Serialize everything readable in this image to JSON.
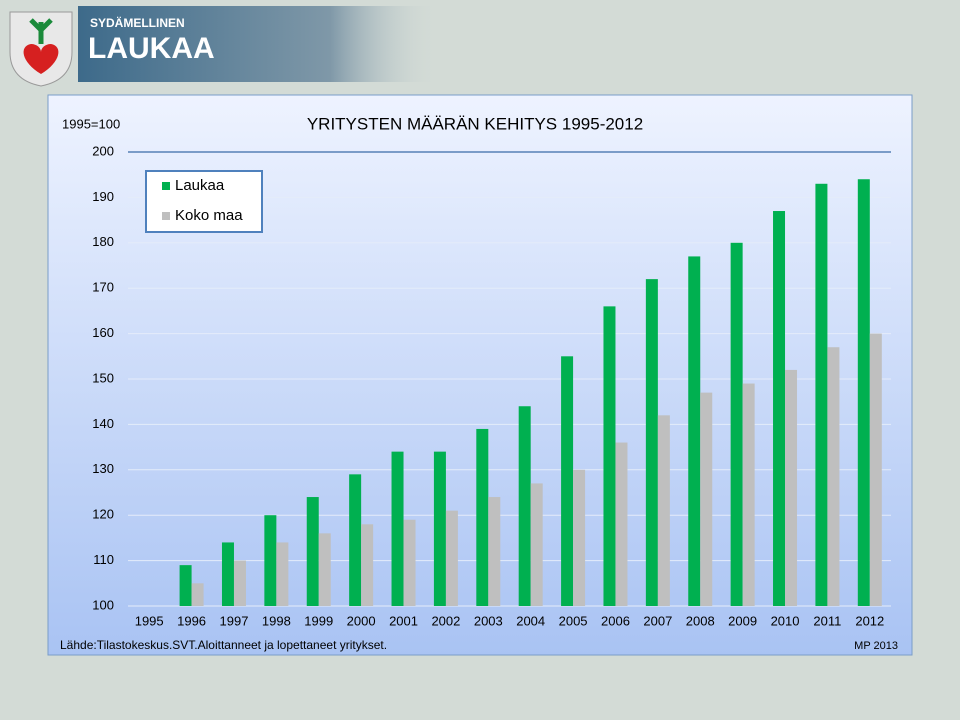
{
  "header": {
    "tagline": "SYDÄMELLINEN",
    "name": "LAUKAA"
  },
  "chart_data": {
    "type": "bar",
    "title": "YRITYSTEN MÄÄRÄN KEHITYS 1995-2012",
    "unit_label": "1995=100",
    "source": "Lähde:Tilastokeskus.SVT.Aloittanneet ja lopettaneet yritykset.",
    "credit": "MP 2013",
    "categories": [
      "1995",
      "1996",
      "1997",
      "1998",
      "1999",
      "2000",
      "2001",
      "2002",
      "2003",
      "2004",
      "2005",
      "2006",
      "2007",
      "2008",
      "2009",
      "2010",
      "2011",
      "2012"
    ],
    "series": [
      {
        "name": "Laukaa",
        "color": "#00b050",
        "values": [
          100,
          109,
          114,
          120,
          124,
          129,
          134,
          134,
          139,
          144,
          155,
          166,
          172,
          177,
          180,
          187,
          193,
          194
        ]
      },
      {
        "name": "Koko maa",
        "color": "#bfbfbf",
        "values": [
          100,
          105,
          110,
          114,
          116,
          118,
          119,
          121,
          124,
          127,
          130,
          136,
          142,
          147,
          149,
          152,
          157,
          160
        ]
      }
    ],
    "ylim": [
      100,
      200
    ],
    "yticks": [
      100,
      110,
      120,
      130,
      140,
      150,
      160,
      170,
      180,
      190,
      200
    ],
    "grid": true,
    "legend": "top-left"
  }
}
